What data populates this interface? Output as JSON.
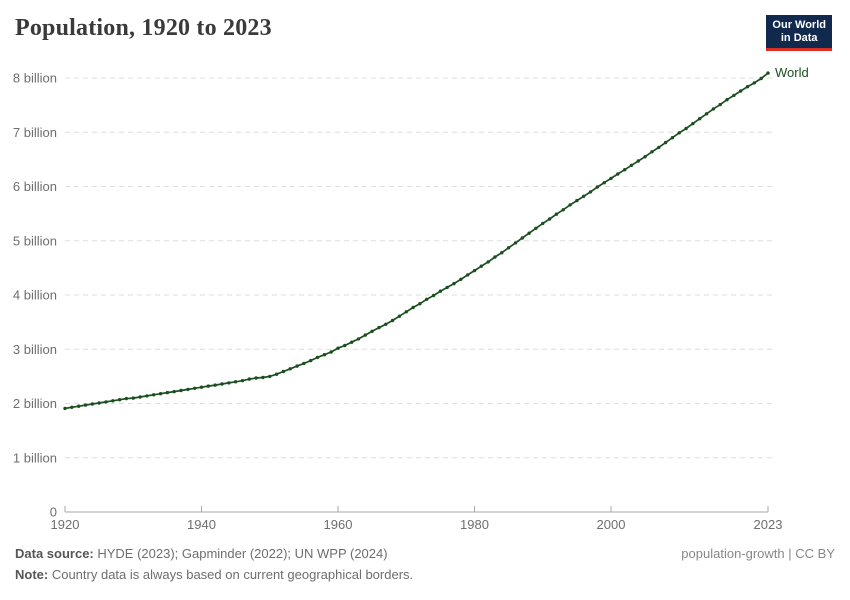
{
  "header": {
    "title": "Population, 1920 to 2023"
  },
  "logo": {
    "line1": "Our World",
    "line2": "in Data",
    "bg_color": "#12294e",
    "bar_color": "#dc2e22"
  },
  "chart_data": {
    "type": "line",
    "title": "Population, 1920 to 2023",
    "xlabel": "",
    "ylabel": "",
    "unit": "billion people",
    "grid": "dashed-horizontal",
    "legend_position": "end-of-line",
    "end_label": "World",
    "xlim": [
      1920,
      2023
    ],
    "ylim": [
      0,
      8
    ],
    "x_ticks": [
      1920,
      1940,
      1960,
      1980,
      2000,
      2023
    ],
    "y_ticks": [
      {
        "value": 0,
        "label": "0"
      },
      {
        "value": 1,
        "label": "1 billion"
      },
      {
        "value": 2,
        "label": "2 billion"
      },
      {
        "value": 3,
        "label": "3 billion"
      },
      {
        "value": 4,
        "label": "4 billion"
      },
      {
        "value": 5,
        "label": "5 billion"
      },
      {
        "value": 6,
        "label": "6 billion"
      },
      {
        "value": 7,
        "label": "7 billion"
      },
      {
        "value": 8,
        "label": "8 billion"
      }
    ],
    "x": [
      1920,
      1921,
      1922,
      1923,
      1924,
      1925,
      1926,
      1927,
      1928,
      1929,
      1930,
      1931,
      1932,
      1933,
      1934,
      1935,
      1936,
      1937,
      1938,
      1939,
      1940,
      1941,
      1942,
      1943,
      1944,
      1945,
      1946,
      1947,
      1948,
      1949,
      1950,
      1951,
      1952,
      1953,
      1954,
      1955,
      1956,
      1957,
      1958,
      1959,
      1960,
      1961,
      1962,
      1963,
      1964,
      1965,
      1966,
      1967,
      1968,
      1969,
      1970,
      1971,
      1972,
      1973,
      1974,
      1975,
      1976,
      1977,
      1978,
      1979,
      1980,
      1981,
      1982,
      1983,
      1984,
      1985,
      1986,
      1987,
      1988,
      1989,
      1990,
      1991,
      1992,
      1993,
      1994,
      1995,
      1996,
      1997,
      1998,
      1999,
      2000,
      2001,
      2002,
      2003,
      2004,
      2005,
      2006,
      2007,
      2008,
      2009,
      2010,
      2011,
      2012,
      2013,
      2014,
      2015,
      2016,
      2017,
      2018,
      2019,
      2020,
      2021,
      2022,
      2023
    ],
    "series": [
      {
        "name": "World",
        "color": "#1b4f1f",
        "values": [
          1.91,
          1.93,
          1.95,
          1.97,
          1.99,
          2.01,
          2.03,
          2.05,
          2.07,
          2.09,
          2.1,
          2.12,
          2.14,
          2.16,
          2.18,
          2.2,
          2.22,
          2.24,
          2.26,
          2.28,
          2.3,
          2.32,
          2.34,
          2.36,
          2.38,
          2.4,
          2.42,
          2.45,
          2.47,
          2.48,
          2.5,
          2.54,
          2.59,
          2.64,
          2.69,
          2.74,
          2.79,
          2.85,
          2.9,
          2.95,
          3.02,
          3.07,
          3.13,
          3.19,
          3.26,
          3.33,
          3.4,
          3.46,
          3.53,
          3.61,
          3.69,
          3.77,
          3.84,
          3.92,
          3.99,
          4.07,
          4.14,
          4.21,
          4.29,
          4.37,
          4.45,
          4.53,
          4.61,
          4.7,
          4.78,
          4.87,
          4.96,
          5.05,
          5.14,
          5.23,
          5.32,
          5.4,
          5.49,
          5.57,
          5.66,
          5.74,
          5.82,
          5.9,
          5.99,
          6.07,
          6.15,
          6.23,
          6.31,
          6.39,
          6.47,
          6.55,
          6.64,
          6.72,
          6.81,
          6.9,
          6.99,
          7.07,
          7.16,
          7.25,
          7.34,
          7.43,
          7.51,
          7.6,
          7.68,
          7.76,
          7.84,
          7.91,
          7.99,
          8.09
        ]
      }
    ]
  },
  "footer": {
    "source_label": "Data source:",
    "source_text": " HYDE (2023); Gapminder (2022); UN WPP (2024)",
    "note_label": "Note:",
    "note_text": " Country data is always based on current geographical borders.",
    "slug": "population-growth",
    "separator": " | ",
    "license": "CC BY"
  }
}
